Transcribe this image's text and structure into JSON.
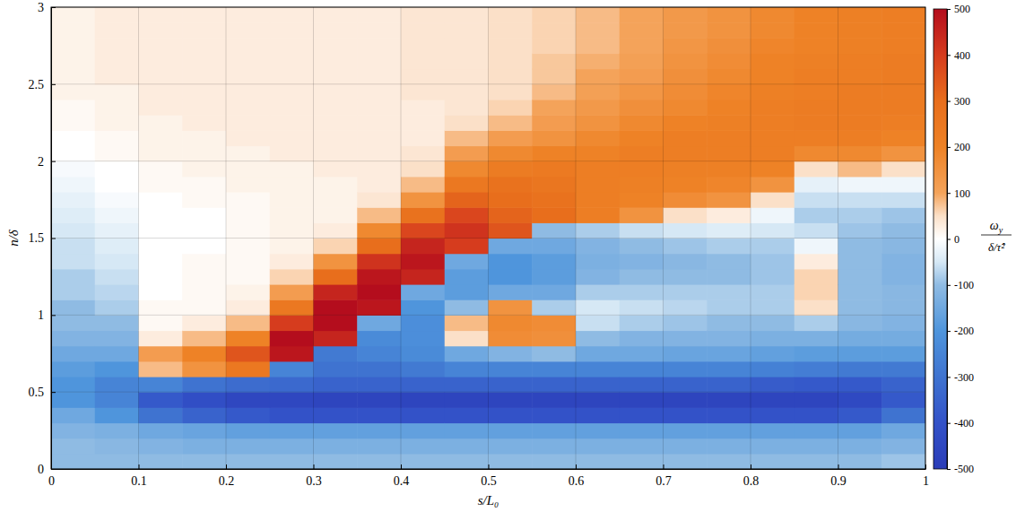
{
  "chart_data": {
    "type": "heatmap",
    "xlabel": "s/L₀",
    "ylabel": "n/δ",
    "xlim": [
      0,
      1
    ],
    "ylim": [
      0,
      3
    ],
    "xticks": [
      0,
      0.1,
      0.2,
      0.3,
      0.4,
      0.5,
      0.6,
      0.7,
      0.8,
      0.9,
      1
    ],
    "yticks": [
      0,
      0.5,
      1,
      1.5,
      2,
      2.5,
      3
    ],
    "grid": true,
    "x": [
      0.025,
      0.075,
      0.125,
      0.175,
      0.225,
      0.275,
      0.325,
      0.375,
      0.425,
      0.475,
      0.525,
      0.575,
      0.625,
      0.675,
      0.725,
      0.775,
      0.825,
      0.875,
      0.925,
      0.975
    ],
    "y": [
      0.05,
      0.15,
      0.25,
      0.35,
      0.45,
      0.55,
      0.65,
      0.75,
      0.85,
      0.95,
      1.05,
      1.15,
      1.25,
      1.35,
      1.45,
      1.55,
      1.65,
      1.75,
      1.85,
      1.95,
      2.05,
      2.15,
      2.25,
      2.35,
      2.45,
      2.55,
      2.65,
      2.75,
      2.85,
      2.95
    ],
    "columns": [
      [
        -100,
        -100,
        -120,
        -150,
        -200,
        -200,
        -180,
        -150,
        -120,
        -100,
        -100,
        -80,
        -80,
        -60,
        -60,
        -50,
        -40,
        -30,
        -20,
        -10,
        0,
        0,
        10,
        10,
        20,
        20,
        20,
        20,
        20,
        20
      ],
      [
        -100,
        -110,
        -130,
        -200,
        -250,
        -250,
        -200,
        -150,
        -120,
        -100,
        -80,
        -70,
        -60,
        -50,
        -40,
        -30,
        -20,
        -10,
        0,
        0,
        10,
        10,
        20,
        20,
        20,
        30,
        30,
        30,
        30,
        30
      ],
      [
        -100,
        -120,
        -150,
        -300,
        -380,
        -250,
        80,
        120,
        30,
        10,
        10,
        0,
        0,
        0,
        0,
        0,
        0,
        0,
        10,
        10,
        20,
        20,
        20,
        30,
        30,
        30,
        30,
        30,
        30,
        30
      ],
      [
        -100,
        -130,
        -160,
        -350,
        -420,
        -300,
        150,
        200,
        80,
        30,
        10,
        10,
        10,
        10,
        0,
        0,
        0,
        10,
        10,
        20,
        20,
        20,
        30,
        30,
        30,
        30,
        30,
        30,
        30,
        30
      ],
      [
        -100,
        -130,
        -170,
        -380,
        -450,
        -320,
        250,
        350,
        200,
        80,
        30,
        20,
        10,
        10,
        10,
        10,
        10,
        10,
        20,
        20,
        20,
        30,
        30,
        30,
        30,
        30,
        30,
        30,
        30,
        30
      ],
      [
        -100,
        -130,
        -170,
        -400,
        -450,
        -330,
        -250,
        480,
        500,
        400,
        250,
        120,
        60,
        30,
        20,
        20,
        20,
        20,
        20,
        20,
        30,
        30,
        30,
        30,
        30,
        30,
        30,
        30,
        30,
        30
      ],
      [
        -100,
        -130,
        -170,
        -400,
        -460,
        -350,
        -300,
        -280,
        450,
        500,
        500,
        450,
        300,
        150,
        60,
        30,
        20,
        20,
        20,
        30,
        30,
        30,
        30,
        30,
        30,
        30,
        30,
        30,
        30,
        30
      ],
      [
        -100,
        -130,
        -170,
        -400,
        -460,
        -350,
        -300,
        -250,
        -230,
        -150,
        480,
        500,
        480,
        420,
        300,
        180,
        80,
        40,
        30,
        30,
        30,
        30,
        30,
        30,
        30,
        30,
        30,
        30,
        30,
        30
      ],
      [
        -100,
        -130,
        -170,
        -400,
        -460,
        -350,
        -280,
        -230,
        -220,
        -220,
        -200,
        -150,
        450,
        480,
        450,
        380,
        280,
        150,
        80,
        50,
        40,
        30,
        30,
        30,
        40,
        40,
        40,
        40,
        40,
        40
      ],
      [
        -100,
        -130,
        -170,
        -400,
        -460,
        -350,
        -250,
        -150,
        50,
        80,
        -100,
        -180,
        -180,
        -150,
        400,
        420,
        380,
        320,
        250,
        180,
        120,
        80,
        50,
        40,
        40,
        40,
        40,
        40,
        40,
        40
      ],
      [
        -100,
        -130,
        -170,
        -400,
        -460,
        -350,
        -250,
        -120,
        170,
        180,
        150,
        -150,
        -200,
        -200,
        -150,
        350,
        320,
        300,
        280,
        230,
        180,
        120,
        80,
        60,
        50,
        50,
        50,
        50,
        50,
        50
      ],
      [
        -100,
        -130,
        -170,
        -400,
        -460,
        -350,
        -250,
        -100,
        160,
        170,
        -80,
        -150,
        -180,
        -180,
        -150,
        -100,
        300,
        280,
        260,
        240,
        200,
        150,
        120,
        100,
        80,
        70,
        70,
        60,
        60,
        60
      ],
      [
        -100,
        -130,
        -170,
        -400,
        -460,
        -350,
        -250,
        -150,
        -100,
        -60,
        -50,
        -80,
        -120,
        -130,
        -120,
        -80,
        220,
        220,
        220,
        220,
        200,
        180,
        150,
        130,
        110,
        100,
        90,
        80,
        80,
        80
      ],
      [
        -100,
        -130,
        -170,
        -400,
        -460,
        -350,
        -250,
        -150,
        -120,
        -80,
        -60,
        -80,
        -100,
        -120,
        -100,
        -60,
        150,
        200,
        210,
        220,
        220,
        200,
        180,
        160,
        140,
        120,
        110,
        100,
        100,
        100
      ],
      [
        -100,
        -130,
        -170,
        -400,
        -460,
        -350,
        -250,
        -160,
        -120,
        -90,
        -70,
        -80,
        -100,
        -110,
        -90,
        -50,
        50,
        170,
        200,
        210,
        220,
        220,
        200,
        180,
        170,
        160,
        150,
        140,
        130,
        130
      ],
      [
        -100,
        -130,
        -170,
        -400,
        -460,
        -350,
        -250,
        -160,
        -120,
        -100,
        -80,
        -80,
        -100,
        -100,
        -80,
        -40,
        30,
        150,
        190,
        210,
        220,
        220,
        210,
        200,
        190,
        180,
        170,
        160,
        150,
        150
      ],
      [
        -100,
        -130,
        -170,
        -400,
        -460,
        -370,
        -260,
        -170,
        -130,
        -100,
        -80,
        -80,
        -90,
        -90,
        -80,
        -50,
        -20,
        50,
        150,
        200,
        220,
        220,
        220,
        220,
        210,
        200,
        200,
        190,
        180,
        180
      ],
      [
        -100,
        -130,
        -170,
        -400,
        -460,
        -380,
        -270,
        -180,
        -130,
        -80,
        50,
        60,
        60,
        30,
        -20,
        -60,
        -80,
        -60,
        -30,
        50,
        180,
        220,
        230,
        230,
        220,
        220,
        210,
        200,
        200,
        200
      ],
      [
        -100,
        -130,
        -170,
        -380,
        -440,
        -380,
        -280,
        -180,
        -140,
        -110,
        -100,
        -100,
        -100,
        -100,
        -100,
        -90,
        -80,
        -60,
        -20,
        80,
        180,
        220,
        230,
        230,
        230,
        220,
        220,
        210,
        210,
        210
      ],
      [
        -90,
        -120,
        -150,
        -300,
        -380,
        -350,
        -280,
        -180,
        -140,
        -120,
        -110,
        -110,
        -120,
        -120,
        -110,
        -100,
        -90,
        -60,
        -20,
        50,
        150,
        200,
        220,
        230,
        230,
        230,
        230,
        220,
        220,
        220
      ]
    ],
    "colorbar": {
      "range": [
        -500,
        500
      ],
      "ticks": [
        -500,
        -400,
        -300,
        -200,
        -100,
        0,
        100,
        200,
        300,
        400,
        500
      ],
      "label": {
        "symbol": "ω",
        "subscript": "y",
        "denominator": "δ/τ̂²"
      }
    }
  }
}
